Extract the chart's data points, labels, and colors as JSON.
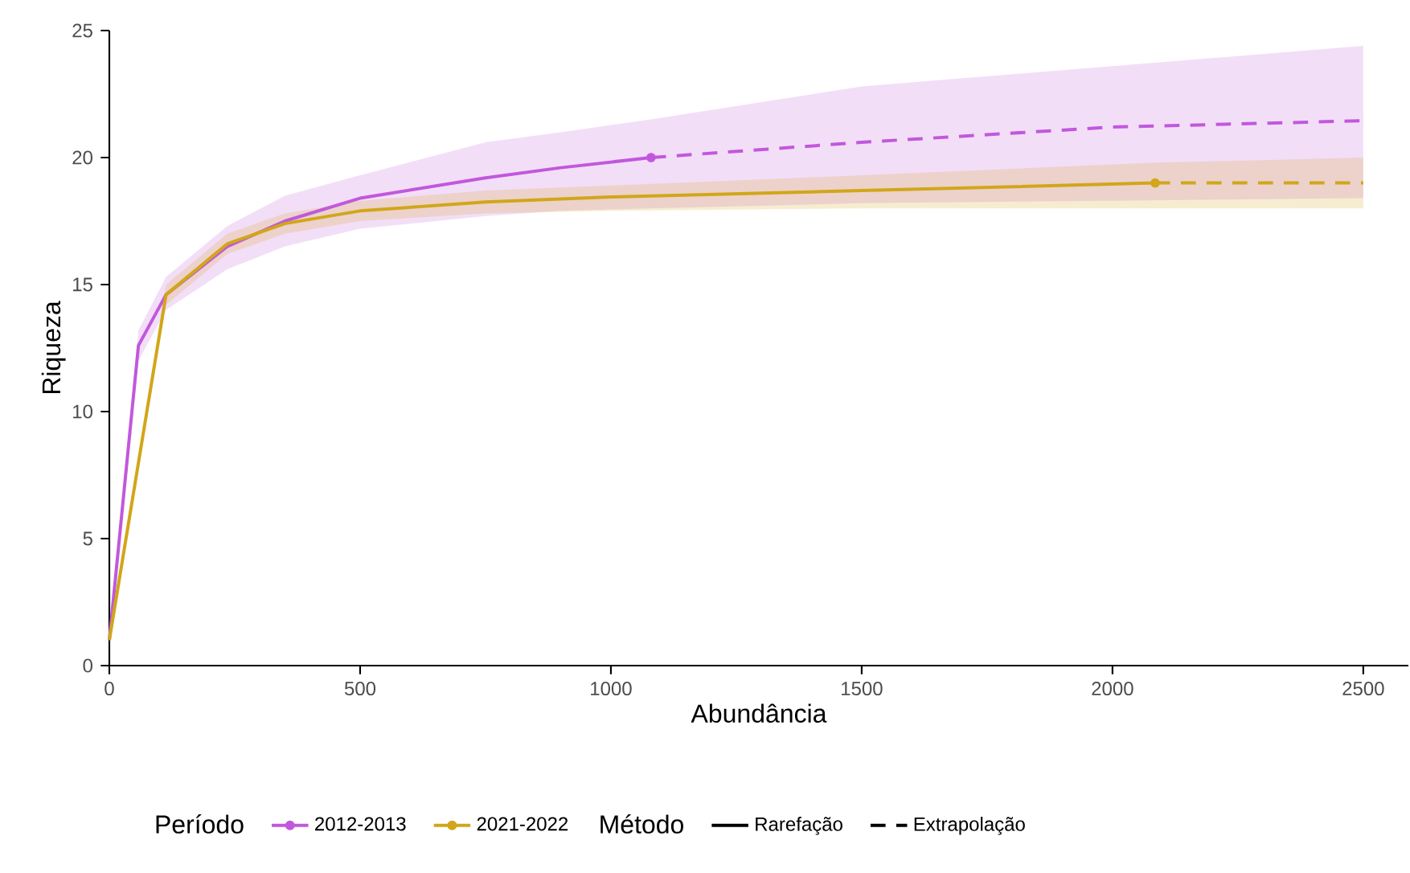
{
  "chart_data": {
    "type": "line",
    "xlabel": "Abundância",
    "ylabel": "Riqueza",
    "legend_title": "Período",
    "xlim": [
      0,
      2590
    ],
    "ylim": [
      0,
      25
    ],
    "xticks": [
      0,
      500,
      1000,
      1500,
      2000,
      2500
    ],
    "yticks": [
      0,
      5,
      10,
      15,
      20,
      25
    ],
    "grid": false,
    "legend": "bottom",
    "annotations": [
      "Método",
      "Rarefação",
      "Extrapolação"
    ],
    "series": [
      {
        "name": "2012-2013",
        "color": "#c158dc",
        "line_style": "solid",
        "x": [
          0,
          58,
          113,
          235,
          350,
          500,
          750,
          900,
          1080
        ],
        "values": [
          1,
          12.6,
          14.6,
          16.5,
          17.5,
          18.4,
          19.2,
          19.6,
          20.0
        ],
        "lower": [
          1,
          12.0,
          14.0,
          15.6,
          16.5,
          17.2,
          17.7,
          17.9,
          18.0
        ],
        "upper": [
          1,
          13.2,
          15.3,
          17.3,
          18.5,
          19.3,
          20.6,
          21.0,
          21.5
        ]
      },
      {
        "color": "#c158dc",
        "line_style": "dashed",
        "x": [
          1080,
          1500,
          2000,
          2500
        ],
        "values": [
          20.0,
          20.6,
          21.2,
          21.45
        ],
        "lower": [
          18.0,
          18.2,
          18.3,
          18.4
        ],
        "upper": [
          21.5,
          22.8,
          23.6,
          24.4
        ]
      },
      {
        "type": "scatter",
        "color": "#c158dc",
        "x": [
          1080
        ],
        "values": [
          20.0
        ]
      },
      {
        "name": "2021-2022",
        "color": "#d1a619",
        "line_style": "solid",
        "x": [
          0,
          113,
          235,
          350,
          500,
          750,
          1000,
          1500,
          2085
        ],
        "values": [
          1,
          14.6,
          16.6,
          17.4,
          17.9,
          18.25,
          18.45,
          18.7,
          19.0
        ],
        "lower": [
          1,
          14.2,
          16.2,
          17.0,
          17.5,
          17.8,
          17.9,
          18.0,
          18.0
        ],
        "upper": [
          1,
          15.0,
          17.0,
          17.8,
          18.3,
          18.7,
          18.9,
          19.3,
          19.8
        ]
      },
      {
        "color": "#d1a619",
        "line_style": "dashed",
        "x": [
          2085,
          2300,
          2500
        ],
        "values": [
          19.0,
          19.0,
          19.0
        ],
        "lower": [
          18.0,
          18.0,
          18.0
        ],
        "upper": [
          19.8,
          19.9,
          20.0
        ]
      },
      {
        "type": "scatter",
        "color": "#d1a619",
        "x": [
          2085
        ],
        "values": [
          19.0
        ]
      }
    ]
  }
}
